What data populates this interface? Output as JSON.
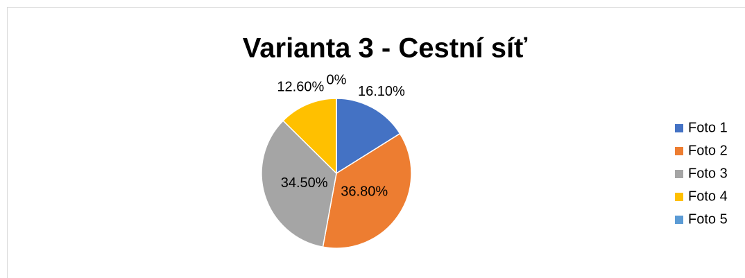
{
  "chart_data": {
    "type": "pie",
    "title": "Varianta 3 - Cestní síť",
    "categories": [
      "Foto 1",
      "Foto 2",
      "Foto 3",
      "Foto 4",
      "Foto 5"
    ],
    "values": [
      16.1,
      36.8,
      34.5,
      12.6,
      0
    ],
    "value_labels": [
      "16.10%",
      "36.80%",
      "34.50%",
      "12.60%",
      "0%"
    ],
    "colors": [
      "#4472c4",
      "#ed7d31",
      "#a5a5a5",
      "#ffc000",
      "#5b9bd5"
    ],
    "legend": "right"
  }
}
